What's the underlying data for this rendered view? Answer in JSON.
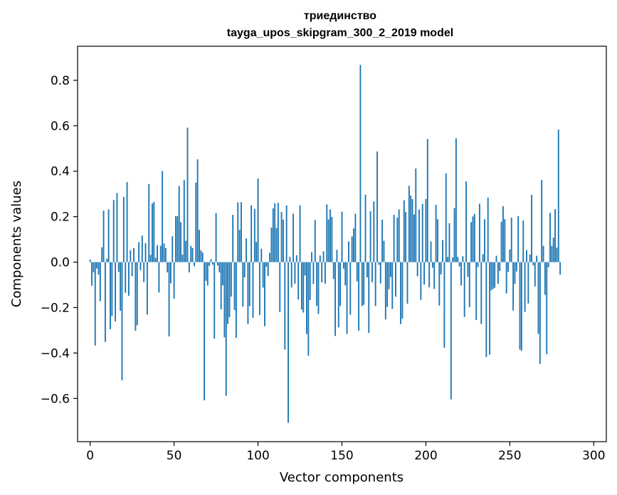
{
  "chart_data": {
    "type": "bar",
    "title": "триединство",
    "subtitle": "tayga_upos_skipgram_300_2_2019 model",
    "xlabel": "Vector components",
    "ylabel": "Components values",
    "xlim": [
      -7.5,
      307.5
    ],
    "ylim": [
      -0.79,
      0.95
    ],
    "xticks": [
      0,
      50,
      100,
      150,
      200,
      250,
      300
    ],
    "yticks": [
      -0.6,
      -0.4,
      -0.2,
      0.0,
      0.2,
      0.4,
      0.6,
      0.8
    ],
    "ytick_labels": [
      "−0.6",
      "−0.4",
      "−0.2",
      "0.0",
      "0.2",
      "0.4",
      "0.6",
      "0.8"
    ],
    "grid": false,
    "bar_color": "#1f77b4",
    "values": [
      0.012,
      -0.104,
      -0.045,
      -0.367,
      -0.028,
      -0.055,
      -0.172,
      0.065,
      0.227,
      -0.351,
      0.015,
      0.232,
      -0.295,
      -0.238,
      0.273,
      -0.261,
      0.304,
      -0.043,
      -0.214,
      -0.52,
      0.287,
      -0.135,
      0.352,
      -0.148,
      0.052,
      -0.062,
      0.062,
      -0.302,
      -0.278,
      0.088,
      -0.036,
      0.117,
      -0.088,
      0.083,
      -0.231,
      0.344,
      0.032,
      0.258,
      0.265,
      0.019,
      0.075,
      -0.134,
      0.072,
      0.401,
      0.082,
      0.062,
      -0.045,
      -0.327,
      -0.093,
      0.114,
      -0.161,
      0.202,
      0.202,
      0.335,
      0.176,
      0.033,
      0.361,
      0.094,
      0.592,
      -0.045,
      0.072,
      0.062,
      -0.018,
      0.35,
      0.452,
      0.142,
      0.052,
      0.042,
      -0.608,
      -0.082,
      -0.103,
      -0.016,
      0.013,
      -0.011,
      -0.337,
      0.216,
      -0.015,
      -0.045,
      -0.208,
      -0.102,
      -0.331,
      -0.588,
      -0.272,
      -0.242,
      -0.152,
      0.208,
      -0.211,
      -0.333,
      0.263,
      0.142,
      0.264,
      -0.196,
      -0.067,
      0.104,
      -0.273,
      -0.194,
      0.25,
      -0.245,
      0.234,
      0.089,
      0.368,
      -0.233,
      0.059,
      -0.112,
      -0.282,
      -0.021,
      -0.061,
      0.041,
      0.152,
      0.237,
      0.259,
      0.15,
      0.261,
      -0.22,
      0.22,
      0.187,
      -0.385,
      0.249,
      -0.707,
      0.023,
      -0.111,
      0.213,
      -0.095,
      0.03,
      -0.164,
      0.249,
      -0.209,
      -0.222,
      -0.059,
      -0.316,
      -0.412,
      -0.167,
      0.044,
      -0.096,
      0.186,
      -0.193,
      -0.228,
      0.029,
      -0.089,
      0.048,
      -0.095,
      0.254,
      0.188,
      0.232,
      0.199,
      -0.074,
      -0.325,
      0.054,
      -0.287,
      -0.193,
      0.222,
      -0.029,
      -0.102,
      -0.316,
      0.091,
      -0.232,
      0.113,
      0.148,
      0.213,
      -0.084,
      -0.302,
      0.868,
      -0.193,
      -0.188,
      0.297,
      -0.067,
      -0.312,
      0.224,
      -0.088,
      0.267,
      -0.193,
      0.487,
      -0.012,
      -0.094,
      0.187,
      0.094,
      -0.252,
      -0.197,
      -0.119,
      -0.066,
      -0.206,
      0.208,
      -0.152,
      0.196,
      0.232,
      -0.273,
      -0.249,
      0.272,
      0.221,
      -0.183,
      0.336,
      0.293,
      0.277,
      0.21,
      0.412,
      -0.062,
      0.232,
      -0.166,
      0.256,
      -0.099,
      0.278,
      0.542,
      -0.111,
      0.091,
      -0.025,
      -0.118,
      0.252,
      0.189,
      -0.191,
      -0.054,
      0.097,
      -0.377,
      0.39,
      0.023,
      0.171,
      -0.604,
      0.021,
      0.238,
      0.545,
      0.023,
      -0.019,
      -0.103,
      0.026,
      -0.241,
      0.355,
      -0.064,
      -0.198,
      0.176,
      0.201,
      0.212,
      -0.255,
      -0.022,
      0.257,
      -0.272,
      0.035,
      0.189,
      -0.418,
      0.284,
      -0.407,
      -0.124,
      -0.118,
      -0.113,
      0.028,
      -0.095,
      -0.039,
      0.178,
      0.246,
      0.189,
      -0.138,
      -0.043,
      0.056,
      0.196,
      -0.213,
      -0.096,
      -0.041,
      0.203,
      -0.385,
      -0.39,
      0.183,
      -0.219,
      0.053,
      -0.182,
      0.034,
      0.296,
      -0.014,
      -0.107,
      0.028,
      -0.316,
      -0.448,
      0.362,
      0.072,
      -0.144,
      -0.405,
      -0.023,
      0.217,
      0.072,
      0.108,
      0.233,
      0.064,
      0.583,
      -0.055
    ]
  }
}
